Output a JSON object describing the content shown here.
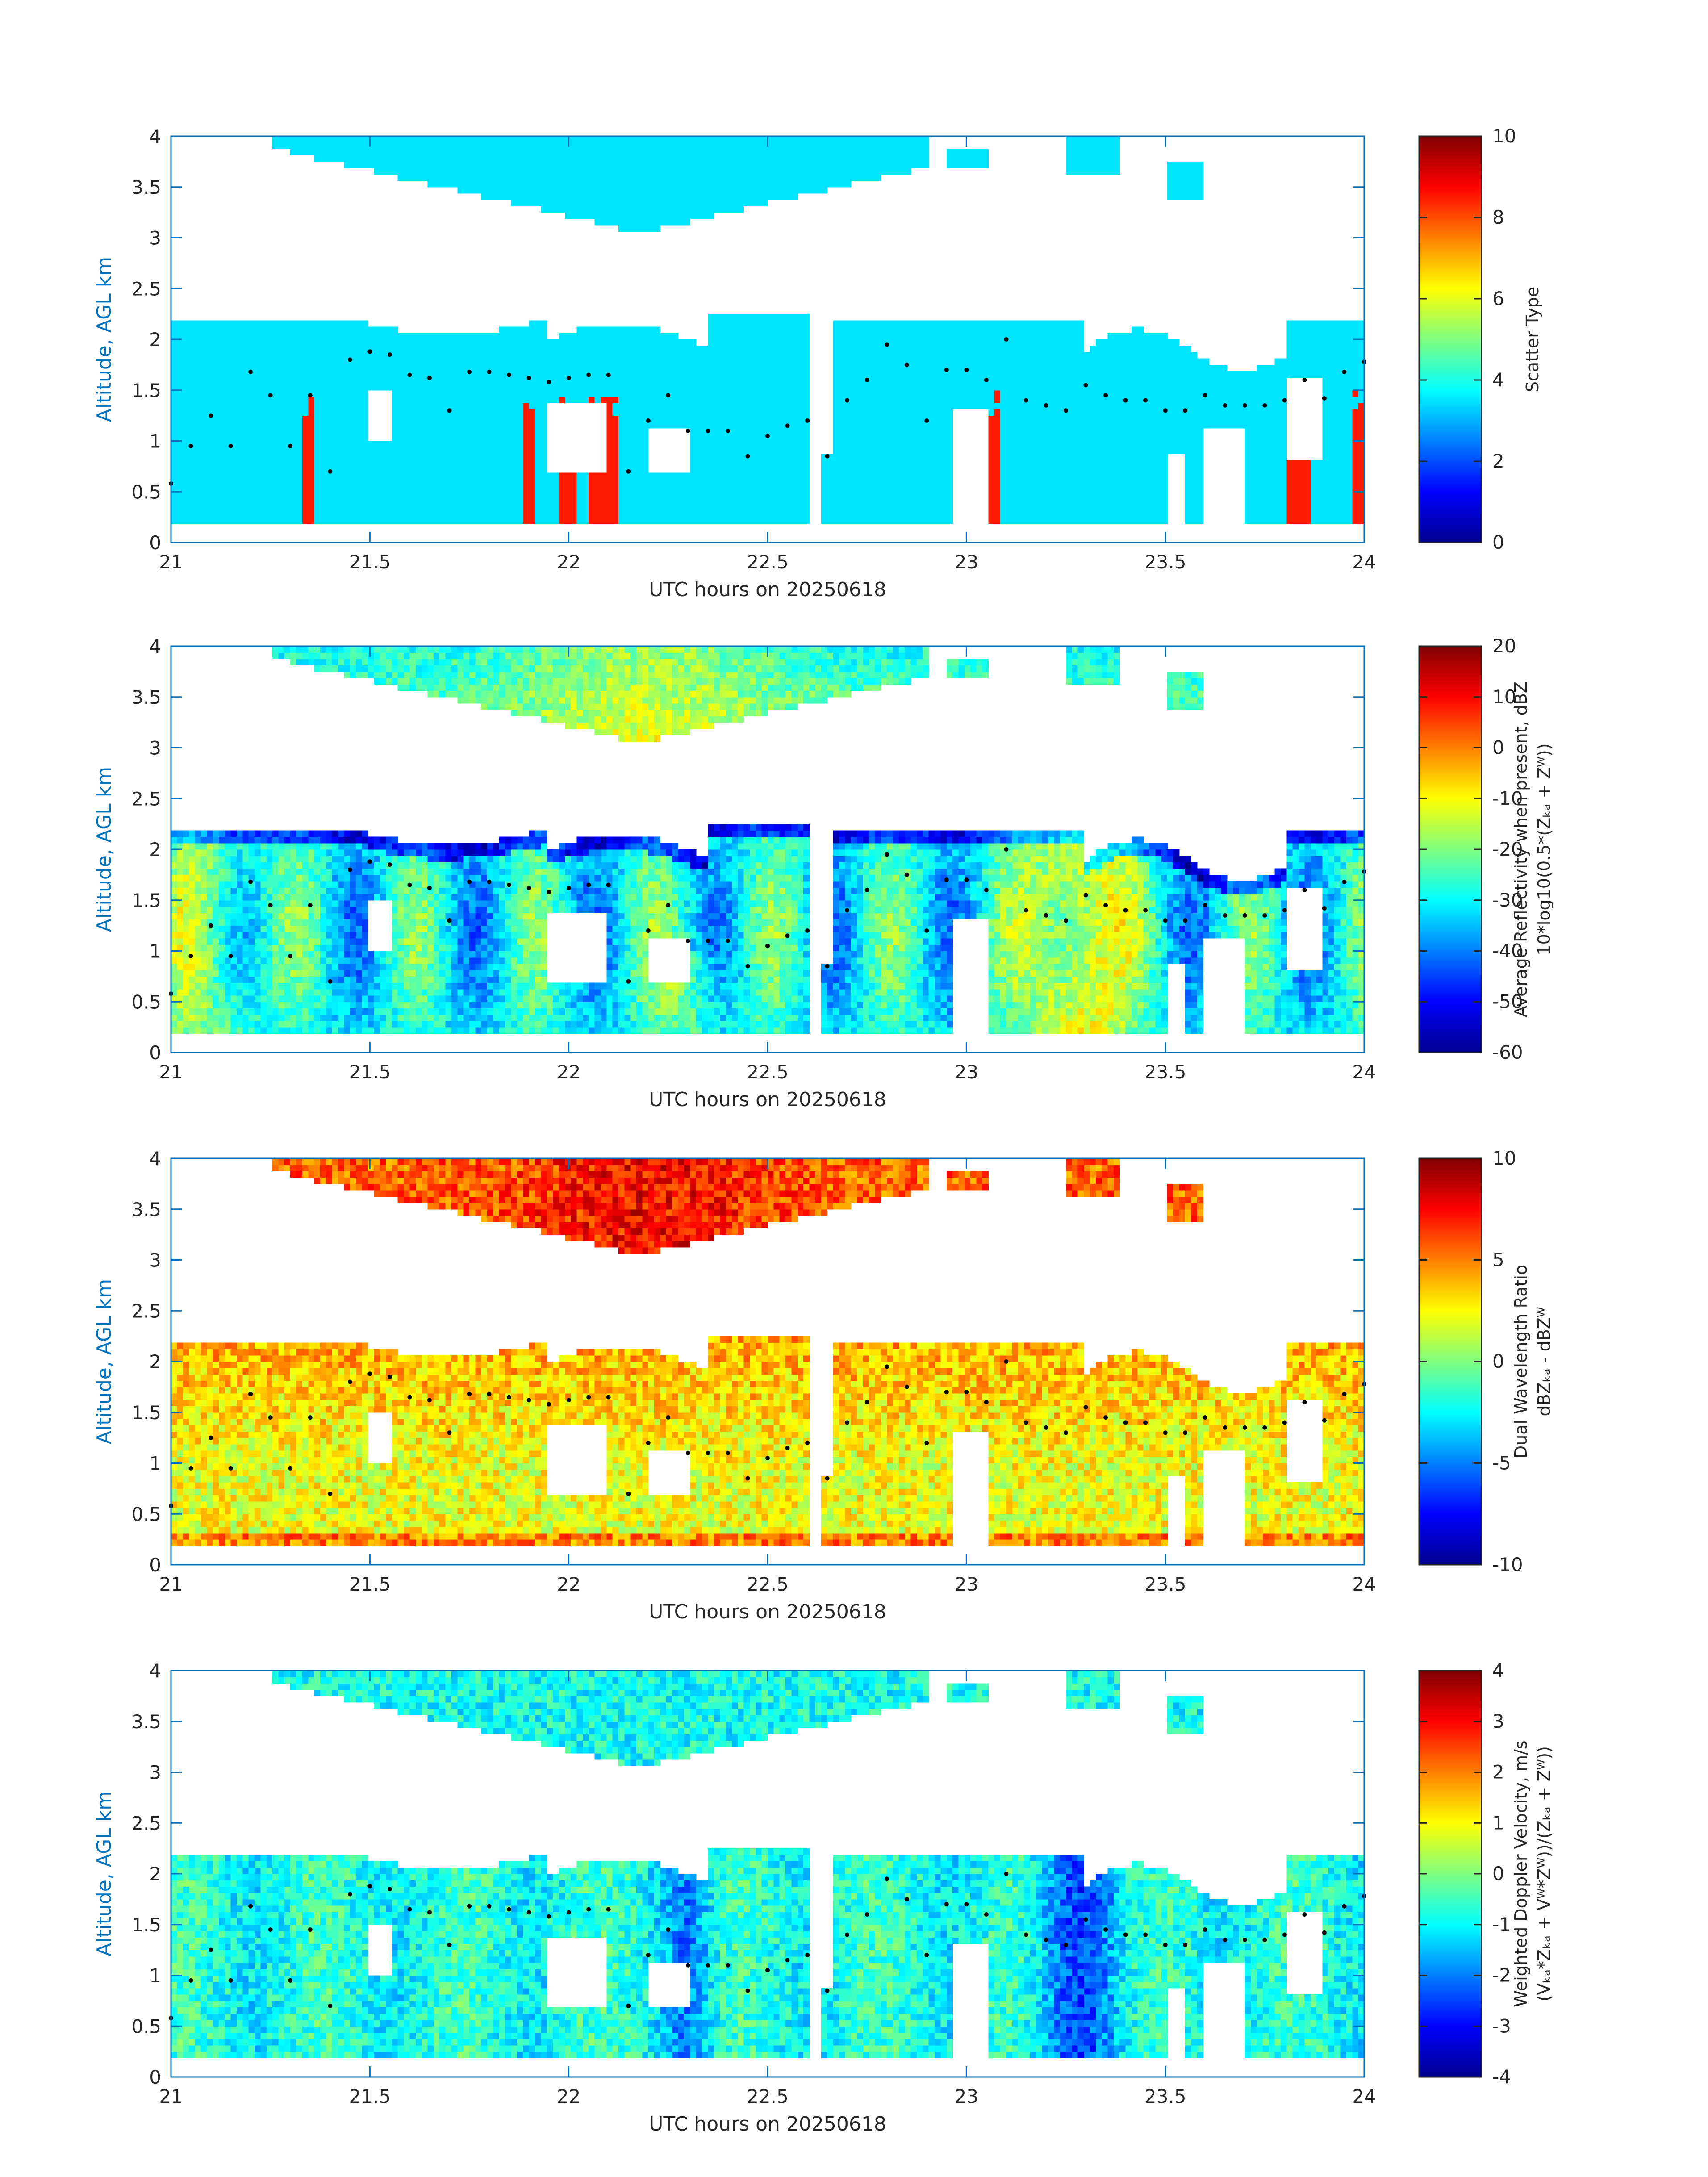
{
  "figure": {
    "xlabel": "UTC hours on 20250618",
    "ylabel": "Altitude, AGL km",
    "xlim": [
      21,
      24
    ],
    "ylim": [
      0,
      4
    ],
    "xticks": [
      "21",
      "21.5",
      "22",
      "22.5",
      "23",
      "23.5",
      "24"
    ],
    "yticks": [
      "0",
      "0.5",
      "1",
      "1.5",
      "2",
      "2.5",
      "3",
      "3.5",
      "4"
    ],
    "axis_color": "#0072BD",
    "text_color": "#262626",
    "colormap": "jet",
    "marker_color": "#000000"
  },
  "chart_data": [
    {
      "type": "heatmap",
      "panel": 1,
      "xlabel": "UTC hours on 20250618",
      "ylabel": "Altitude, AGL km",
      "xlim": [
        21,
        24
      ],
      "ylim": [
        0,
        4
      ],
      "colorbar": {
        "label_lines": [
          "Scatter Type"
        ],
        "range": [
          0,
          10
        ],
        "ticks": [
          "0",
          "2",
          "4",
          "6",
          "8",
          "10"
        ]
      },
      "dominant_value": 3.5,
      "secondary_value": 8.5
    },
    {
      "type": "heatmap",
      "panel": 2,
      "xlabel": "UTC hours on 20250618",
      "ylabel": "Altitude, AGL km",
      "xlim": [
        21,
        24
      ],
      "ylim": [
        0,
        4
      ],
      "colorbar": {
        "label_lines": [
          "Average Reflectivity when present, dBZ",
          "10*log10(0.5*(Zₖₐ + Zᵂ))"
        ],
        "range": [
          -60,
          20
        ],
        "ticks": [
          "-60",
          "-50",
          "-40",
          "-30",
          "-20",
          "-10",
          "0",
          "10",
          "20"
        ]
      },
      "value_range_shown": [
        -60,
        5
      ]
    },
    {
      "type": "heatmap",
      "panel": 3,
      "xlabel": "UTC hours on 20250618",
      "ylabel": "Altitude, AGL km",
      "xlim": [
        21,
        24
      ],
      "ylim": [
        0,
        4
      ],
      "colorbar": {
        "label_lines": [
          "Dual Wavelength Ratio",
          "dBZₖₐ - dBZᵂ"
        ],
        "range": [
          -10,
          10
        ],
        "ticks": [
          "-10",
          "-5",
          "0",
          "5",
          "10"
        ]
      },
      "value_range_shown": [
        1,
        10
      ]
    },
    {
      "type": "heatmap",
      "panel": 4,
      "xlabel": "UTC hours on 20250618",
      "ylabel": "Altitude, AGL km",
      "xlim": [
        21,
        24
      ],
      "ylim": [
        0,
        4
      ],
      "colorbar": {
        "label_lines": [
          "Weighted Doppler Velocity, m/s",
          "(Vₖₐ*Zₖₐ + Vᵂ*Zᵂ))/(Zₖₐ + Zᵂ))"
        ],
        "range": [
          -4,
          4
        ],
        "ticks": [
          "-4",
          "-3",
          "-2",
          "-1",
          "0",
          "1",
          "2",
          "3",
          "4"
        ]
      },
      "value_range_shown": [
        -3,
        1
      ]
    }
  ],
  "cloud_base_markers": {
    "x": [
      21.0,
      21.05,
      21.1,
      21.15,
      21.2,
      21.25,
      21.3,
      21.35,
      21.4,
      21.45,
      21.5,
      21.55,
      21.6,
      21.65,
      21.7,
      21.75,
      21.8,
      21.85,
      21.9,
      21.95,
      22.0,
      22.05,
      22.1,
      22.15,
      22.2,
      22.25,
      22.3,
      22.35,
      22.4,
      22.45,
      22.5,
      22.55,
      22.6,
      22.65,
      22.7,
      22.75,
      22.8,
      22.85,
      22.9,
      22.95,
      23.0,
      23.05,
      23.1,
      23.15,
      23.2,
      23.25,
      23.3,
      23.35,
      23.4,
      23.45,
      23.5,
      23.55,
      23.6,
      23.65,
      23.7,
      23.75,
      23.8,
      23.85,
      23.9,
      23.95,
      24.0
    ],
    "y": [
      0.58,
      0.95,
      1.25,
      0.95,
      1.68,
      1.45,
      0.95,
      1.45,
      0.7,
      1.8,
      1.88,
      1.85,
      1.65,
      1.62,
      1.3,
      1.68,
      1.68,
      1.65,
      1.62,
      1.58,
      1.62,
      1.65,
      1.65,
      0.7,
      1.2,
      1.45,
      1.1,
      1.1,
      1.1,
      0.85,
      1.05,
      1.15,
      1.2,
      0.85,
      1.4,
      1.6,
      1.95,
      1.75,
      1.2,
      1.7,
      1.7,
      1.6,
      2.0,
      1.4,
      1.35,
      1.3,
      1.55,
      1.45,
      1.4,
      1.4,
      1.3,
      1.3,
      1.45,
      1.35,
      1.35,
      1.35,
      1.4,
      1.6,
      1.42,
      1.68,
      1.78
    ]
  }
}
